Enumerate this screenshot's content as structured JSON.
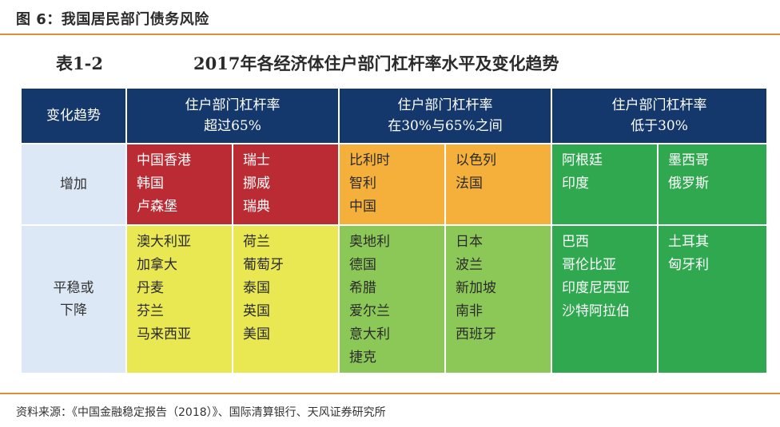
{
  "figure_title": "图 6：我国居民部门债务风险",
  "table_label": "表1-2",
  "table_title": "2017年各经济体住户部门杠杆率水平及变化趋势",
  "header": {
    "corner": "变化趋势",
    "groups": [
      {
        "line1": "住户部门杠杆率",
        "line2": "超过65%"
      },
      {
        "line1": "住户部门杠杆率",
        "line2": "在30%与65%之间"
      },
      {
        "line1": "住户部门杠杆率",
        "line2": "低于30%"
      }
    ]
  },
  "rows": [
    {
      "label_lines": [
        "增加"
      ],
      "cells": [
        [
          "中国香港",
          "韩国",
          "卢森堡"
        ],
        [
          "瑞士",
          "挪威",
          "瑞典"
        ],
        [
          "比利时",
          "智利",
          "中国"
        ],
        [
          "以色列",
          "法国"
        ],
        [
          "阿根廷",
          "印度"
        ],
        [
          "墨西哥",
          "俄罗斯"
        ]
      ]
    },
    {
      "label_lines": [
        "平稳或",
        "下降"
      ],
      "cells": [
        [
          "澳大利亚",
          "加拿大",
          "丹麦",
          "芬兰",
          "马来西亚"
        ],
        [
          "荷兰",
          "葡萄牙",
          "泰国",
          "英国",
          "美国"
        ],
        [
          "奥地利",
          "德国",
          "希腊",
          "爱尔兰",
          "意大利",
          "捷克"
        ],
        [
          "日本",
          "波兰",
          "新加坡",
          "南非",
          "西班牙"
        ],
        [
          "巴西",
          "哥伦比亚",
          "印度尼西亚",
          "沙特阿拉伯"
        ],
        [
          "土耳其",
          "匈牙利"
        ]
      ]
    }
  ],
  "colors": {
    "header_bg": "#14386b",
    "row_head_bg": "#dce8f5",
    "high_increase": "#bb2b33",
    "mid_increase": "#f4b03a",
    "low_increase": "#2fa84f",
    "high_stable": "#e9e752",
    "mid_stable": "#8cc857",
    "low_stable": "#2fa84f",
    "rule": "#d7913b"
  },
  "source": "资料来源：《中国金融稳定报告（2018）》、国际清算银行、天风证券研究所"
}
